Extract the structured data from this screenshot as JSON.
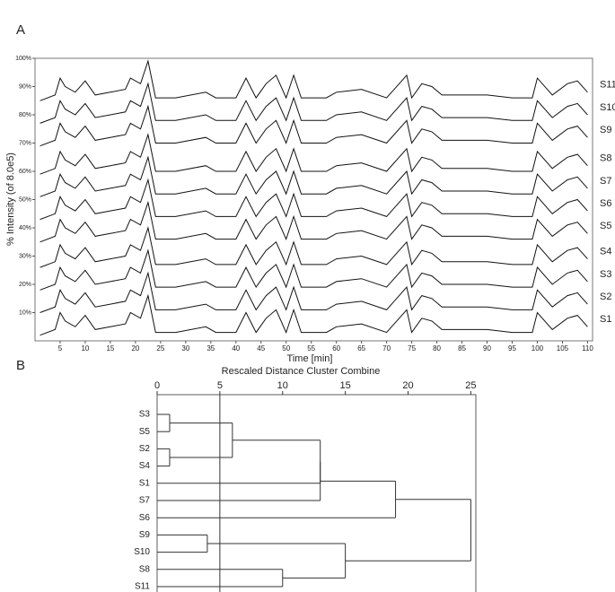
{
  "chart_data": [
    {
      "type": "line",
      "annotation": "A",
      "ylabel": "% Intensity (of 8.0e5)",
      "xlabel": "Time [min]",
      "xlim": [
        0,
        111
      ],
      "xticks": [
        5,
        10,
        15,
        20,
        25,
        30,
        35,
        40,
        45,
        50,
        55,
        60,
        65,
        70,
        75,
        80,
        85,
        90,
        95,
        100,
        105,
        110
      ],
      "ylim": [
        0,
        100
      ],
      "yticks": [
        {
          "value": 10,
          "label": "10%"
        },
        {
          "value": 20,
          "label": "20%"
        },
        {
          "value": 30,
          "label": "30%"
        },
        {
          "value": 40,
          "label": "40%"
        },
        {
          "value": 50,
          "label": "50%"
        },
        {
          "value": 60,
          "label": "60%"
        },
        {
          "value": 70,
          "label": "70%"
        },
        {
          "value": 80,
          "label": "80%"
        },
        {
          "value": 90,
          "label": "90%"
        },
        {
          "value": 100,
          "label": "100%"
        }
      ],
      "x": [
        1,
        4,
        5,
        6,
        8,
        10,
        12,
        15,
        18,
        19,
        21,
        22.5,
        24,
        28,
        34,
        36,
        40,
        42,
        44,
        46,
        48,
        50,
        51.5,
        53,
        58,
        60,
        65,
        70,
        74,
        75,
        77,
        79,
        81,
        90,
        95,
        99,
        100,
        103,
        106,
        108,
        110
      ],
      "series": [
        {
          "name": "S1",
          "color": "#111111",
          "values": [
            2,
            4,
            10,
            7,
            5,
            9,
            4,
            5,
            6,
            10,
            8,
            16,
            3,
            3,
            5,
            3,
            3,
            10,
            3,
            8,
            11,
            3,
            11,
            3,
            3,
            5,
            6,
            3,
            11,
            3,
            8,
            7,
            4,
            4,
            3,
            3,
            10,
            4,
            8,
            9,
            5
          ]
        },
        {
          "name": "S2",
          "color": "#111111",
          "values": [
            10,
            12,
            18,
            15,
            13,
            17,
            12,
            13,
            14,
            18,
            16,
            24,
            11,
            11,
            13,
            11,
            11,
            18,
            11,
            16,
            19,
            11,
            19,
            11,
            11,
            13,
            14,
            11,
            19,
            11,
            16,
            15,
            12,
            12,
            11,
            11,
            18,
            12,
            16,
            17,
            13
          ]
        },
        {
          "name": "S3",
          "color": "#111111",
          "values": [
            18,
            20,
            26,
            23,
            21,
            25,
            20,
            21,
            22,
            26,
            24,
            32,
            19,
            19,
            21,
            19,
            19,
            26,
            19,
            24,
            27,
            19,
            27,
            19,
            19,
            21,
            22,
            19,
            27,
            19,
            24,
            23,
            20,
            20,
            19,
            19,
            26,
            20,
            24,
            25,
            21
          ]
        },
        {
          "name": "S4",
          "color": "#111111",
          "values": [
            26,
            28,
            34,
            31,
            29,
            33,
            28,
            29,
            30,
            34,
            32,
            40,
            27,
            27,
            29,
            27,
            27,
            34,
            27,
            32,
            35,
            27,
            35,
            27,
            27,
            29,
            30,
            27,
            35,
            27,
            32,
            31,
            28,
            28,
            27,
            27,
            34,
            28,
            32,
            33,
            29
          ]
        },
        {
          "name": "S5",
          "color": "#111111",
          "values": [
            35,
            37,
            43,
            40,
            38,
            42,
            37,
            38,
            39,
            43,
            41,
            49,
            36,
            36,
            38,
            36,
            36,
            43,
            36,
            41,
            44,
            36,
            44,
            36,
            36,
            38,
            39,
            36,
            44,
            36,
            41,
            40,
            37,
            37,
            36,
            36,
            43,
            37,
            41,
            42,
            38
          ]
        },
        {
          "name": "S6",
          "color": "#111111",
          "values": [
            43,
            45,
            51,
            48,
            46,
            50,
            45,
            46,
            47,
            51,
            49,
            57,
            44,
            44,
            46,
            44,
            44,
            51,
            44,
            49,
            52,
            44,
            52,
            44,
            44,
            46,
            47,
            44,
            52,
            44,
            49,
            48,
            45,
            45,
            44,
            44,
            51,
            45,
            49,
            50,
            46
          ]
        },
        {
          "name": "S7",
          "color": "#111111",
          "values": [
            51,
            53,
            59,
            56,
            54,
            58,
            53,
            54,
            55,
            59,
            57,
            65,
            52,
            52,
            54,
            52,
            52,
            59,
            52,
            57,
            60,
            52,
            60,
            52,
            52,
            54,
            55,
            52,
            60,
            52,
            57,
            56,
            53,
            53,
            52,
            52,
            59,
            53,
            57,
            58,
            54
          ]
        },
        {
          "name": "S8",
          "color": "#111111",
          "values": [
            59,
            61,
            67,
            64,
            62,
            66,
            61,
            62,
            63,
            67,
            65,
            73,
            60,
            60,
            62,
            60,
            60,
            67,
            60,
            65,
            68,
            60,
            68,
            60,
            60,
            62,
            63,
            60,
            68,
            60,
            65,
            64,
            61,
            61,
            60,
            60,
            67,
            61,
            65,
            66,
            62
          ]
        },
        {
          "name": "S9",
          "color": "#111111",
          "values": [
            69,
            71,
            77,
            74,
            72,
            76,
            71,
            72,
            73,
            77,
            75,
            83,
            70,
            70,
            72,
            70,
            70,
            77,
            70,
            75,
            78,
            70,
            78,
            70,
            70,
            72,
            73,
            70,
            78,
            70,
            75,
            74,
            71,
            71,
            70,
            70,
            77,
            71,
            75,
            76,
            72
          ]
        },
        {
          "name": "S10",
          "color": "#111111",
          "values": [
            77,
            79,
            85,
            82,
            80,
            84,
            79,
            80,
            81,
            85,
            83,
            91,
            78,
            78,
            80,
            78,
            78,
            85,
            78,
            83,
            86,
            78,
            86,
            78,
            78,
            80,
            81,
            78,
            86,
            78,
            83,
            82,
            79,
            79,
            78,
            78,
            85,
            79,
            83,
            84,
            80
          ]
        },
        {
          "name": "S11",
          "color": "#111111",
          "values": [
            85,
            87,
            93,
            90,
            88,
            92,
            87,
            88,
            89,
            93,
            91,
            99,
            86,
            86,
            88,
            86,
            86,
            93,
            86,
            91,
            94,
            86,
            94,
            86,
            86,
            88,
            89,
            86,
            94,
            86,
            91,
            90,
            87,
            87,
            86,
            86,
            93,
            87,
            91,
            92,
            88
          ]
        }
      ]
    },
    {
      "type": "dendrogram",
      "annotation": "B",
      "title": "Rescaled Distance Cluster Combine",
      "xlim": [
        0,
        25.4
      ],
      "xticks": [
        0,
        5,
        10,
        15,
        20,
        25
      ],
      "leaves": [
        "S3",
        "S5",
        "S2",
        "S4",
        "S1",
        "S7",
        "S6",
        "S9",
        "S10",
        "S8",
        "S11"
      ],
      "merges": [
        {
          "join": [
            0,
            1
          ],
          "distance": 1
        },
        {
          "join": [
            2,
            3
          ],
          "distance": 1
        },
        {
          "join": [
            11,
            12
          ],
          "distance": 6
        },
        {
          "join": [
            13,
            4
          ],
          "distance": 13
        },
        {
          "join": [
            14,
            5
          ],
          "distance": 13
        },
        {
          "join": [
            15,
            6
          ],
          "distance": 19
        },
        {
          "join": [
            7,
            8
          ],
          "distance": 4
        },
        {
          "join": [
            9,
            10
          ],
          "distance": 10
        },
        {
          "join": [
            17,
            18
          ],
          "distance": 15
        },
        {
          "join": [
            16,
            19
          ],
          "distance": 25
        }
      ],
      "reference_line": 5
    }
  ]
}
